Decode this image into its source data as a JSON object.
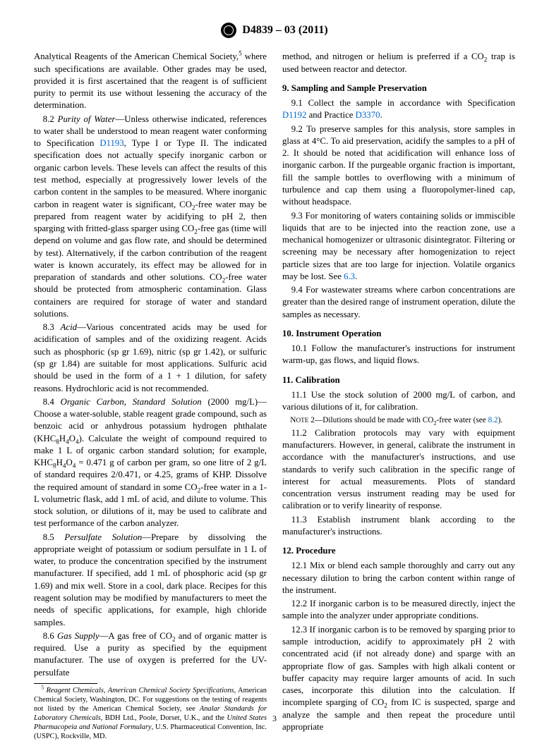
{
  "header": {
    "designation": "D4839 – 03 (2011)"
  },
  "col1": {
    "p81_cont": "Analytical Reagents of the American Chemical Society,",
    "p81_cont2": " where such specifications are available. Other grades may be used, provided it is first ascertained that the reagent is of sufficient purity to permit its use without lessening the accuracy of the determination.",
    "p82_lead": "8.2 ",
    "p82_title": "Purity of Water",
    "p82_a": "—Unless otherwise indicated, references to water shall be understood to mean reagent water conforming to Specification ",
    "p82_link": "D1193",
    "p82_b": ", Type I or Type II. The indicated specification does not actually specify inorganic carbon or organic carbon levels. These levels can affect the results of this test method, especially at progressively lower levels of the carbon content in the samples to be measured. Where inorganic carbon in reagent water is significant, CO",
    "p82_c": "-free water may be prepared from reagent water by acidifying to pH 2, then sparging with fritted-glass sparger using CO",
    "p82_d": "-free gas (time will depend on volume and gas flow rate, and should be determined by test). Alternatively, if the carbon contribution of the reagent water is known accurately, its effect may be allowed for in preparation of standards and other solutions. CO",
    "p82_e": "-free water should be protected from atmospheric contamination. Glass containers are required for storage of water and standard solutions.",
    "p83_lead": "8.3 ",
    "p83_title": "Acid",
    "p83": "—Various concentrated acids may be used for acidification of samples and of the oxidizing reagent. Acids such as phosphoric (sp gr 1.69), nitric (sp gr 1.42), or sulfuric (sp gr 1.84) are suitable for most applications. Sulfuric acid should be used in the form of a 1 + 1 dilution, for safety reasons. Hydrochloric acid is not recommended.",
    "p84_lead": "8.4 ",
    "p84_title": "Organic Carbon, Standard Solution",
    "p84_a": " (2000 mg/L)— Choose a water-soluble, stable reagent grade compound, such as benzoic acid or anhydrous potassium hydrogen phthalate (KHC",
    "p84_b": "). Calculate the weight of compound required to make 1 L of organic carbon standard solution; for example, KHC",
    "p84_c": " = 0.471 g of carbon per gram, so one litre of 2 g/L of standard requires 2/0.471, or 4.25, grams of KHP. Dissolve the required amount of standard in some CO",
    "p84_d": "-free water in a 1-L volumetric flask, add 1 mL of acid, and dilute to volume. This stock solution, or dilutions of it, may be used to calibrate and test performance of the carbon analyzer.",
    "p85_lead": "8.5 ",
    "p85_title": "Persulfate Solution",
    "p85": "—Prepare by dissolving the appropriate weight of potassium or sodium persulfate in 1 L of water, to produce the concentration specified by the instrument manufacturer. If specified, add 1 mL of phosphoric acid (sp gr 1.69) and mix well. Store in a cool, dark place. Recipes for this reagent solution may be modified by manufacturers to meet the needs of specific applications, for example, high chloride samples.",
    "p86_lead": "8.6 ",
    "p86_title": "Gas Supply",
    "p86_a": "—A gas free of CO",
    "p86_b": " and of organic matter is required. Use a purity as specified by the equipment manufacturer. The use of oxygen is preferred for the UV-persulfate"
  },
  "col2": {
    "p86_cont_a": "method, and nitrogen or helium is preferred if a CO",
    "p86_cont_b": " trap is used between reactor and detector.",
    "h9": "9. Sampling and Sample Preservation",
    "p91_a": "9.1 Collect the sample in accordance with Specification ",
    "p91_link1": "D1192",
    "p91_mid": " and Practice ",
    "p91_link2": "D3370",
    "p91_end": ".",
    "p92": "9.2 To preserve samples for this analysis, store samples in glass at 4°C. To aid preservation, acidify the samples to a pH of 2. It should be noted that acidification will enhance loss of inorganic carbon. If the purgeable organic fraction is important, fill the sample bottles to overflowing with a minimum of turbulence and cap them using a fluoropolymer-lined cap, without headspace.",
    "p93_a": "9.3 For monitoring of waters containing solids or immiscible liquids that are to be injected into the reaction zone, use a mechanical homogenizer or ultrasonic disintegrator. Filtering or screening may be necessary after homogenization to reject particle sizes that are too large for injection. Volatile organics may be lost. See ",
    "p93_link": "6.3",
    "p93_end": ".",
    "p94": "9.4 For wastewater streams where carbon concentrations are greater than the desired range of instrument operation, dilute the samples as necessary.",
    "h10": "10. Instrument Operation",
    "p101": "10.1 Follow the manufacturer's instructions for instrument warm-up, gas flows, and liquid flows.",
    "h11": "11. Calibration",
    "p111": "11.1 Use the stock solution of 2000 mg/L of carbon, and various dilutions of it, for calibration.",
    "note2_lead": "Note 2—",
    "note2_a": "Dilutions should be made with CO",
    "note2_b": "-free water (see ",
    "note2_link": "8.2",
    "note2_end": ").",
    "p112": "11.2 Calibration protocols may vary with equipment manufacturers. However, in general, calibrate the instrument in accordance with the manufacturer's instructions, and use standards to verify such calibration in the specific range of interest for actual measurements. Plots of standard concentration versus instrument reading may be used for calibration or to verify linearity of response.",
    "p113": "11.3 Establish instrument blank according to the manufacturer's instructions.",
    "h12": "12. Procedure",
    "p121": "12.1 Mix or blend each sample thoroughly and carry out any necessary dilution to bring the carbon content within range of the instrument.",
    "p122": "12.2 If inorganic carbon is to be measured directly, inject the sample into the analyzer under appropriate conditions.",
    "p123_a": "12.3 If inorganic carbon is to be removed by sparging prior to sample introduction, acidify to approximately pH 2 with concentrated acid (if not already done) and sparge with an appropriate flow of gas. Samples with high alkali content or buffer capacity may require larger amounts of acid. In such cases, incorporate this dilution into the calculation. If incomplete sparging of CO",
    "p123_b": " from IC is suspected, sparge and analyze the sample and then repeat the procedure until appropriate"
  },
  "footnote": {
    "num": "5",
    "a": " Reagent Chemicals, American Chemical Society Specifications",
    "b": ", American Chemical Society, Washington, DC. For suggestions on the testing of reagents not listed by the American Chemical Society, see ",
    "c": "Analar Standards for Laboratory Chemicals",
    "d": ", BDH Ltd., Poole, Dorset, U.K., and the ",
    "e": "United States Pharmacopeia and National Formulary",
    "f": ", U.S. Pharmaceutical Convention, Inc. (USPC), Rockville, MD."
  },
  "pagenum": "3"
}
